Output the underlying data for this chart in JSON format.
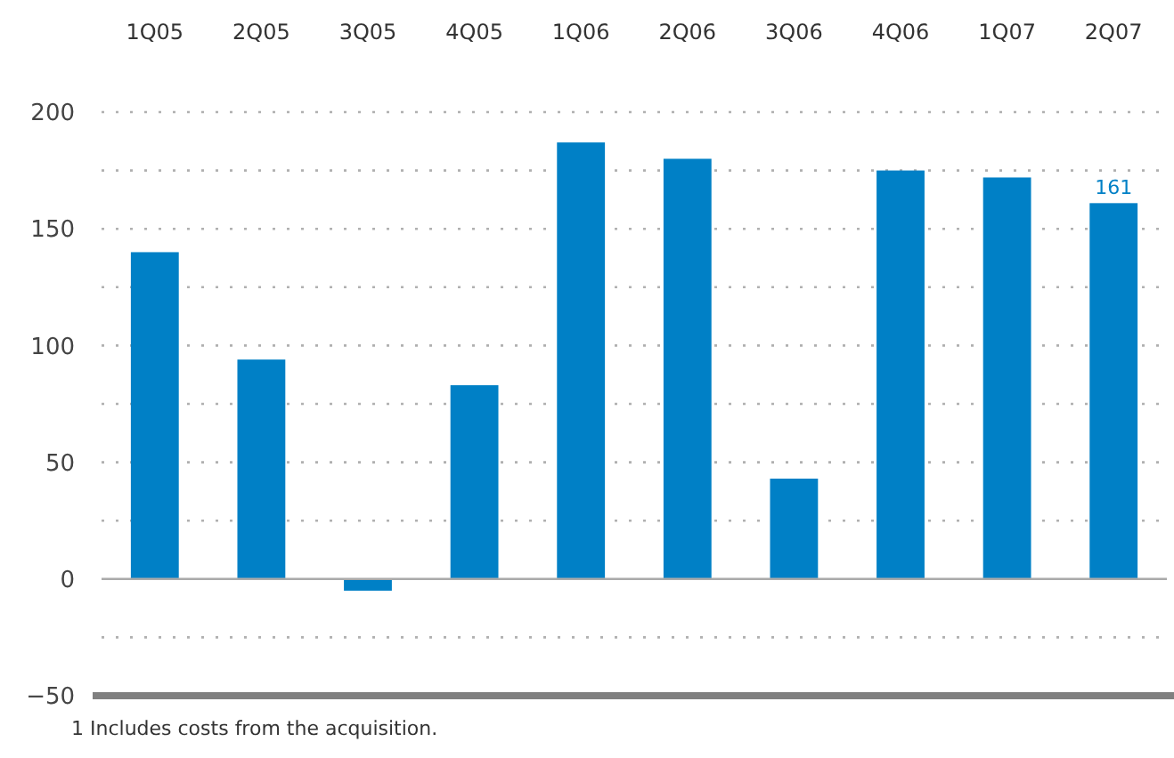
{
  "chart_data": {
    "type": "bar",
    "categories": [
      "1Q05",
      "2Q05",
      "3Q05",
      "4Q05",
      "1Q06",
      "2Q06",
      "3Q06",
      "4Q06",
      "1Q07",
      "2Q07"
    ],
    "values": [
      140,
      94,
      -5,
      83,
      187,
      180,
      43,
      175,
      172,
      161
    ],
    "value_labels": [
      null,
      null,
      null,
      null,
      null,
      null,
      null,
      null,
      null,
      "161"
    ],
    "color": "#0080c6",
    "ylim": [
      -50,
      200
    ],
    "yticks": [
      -50,
      {
        "value": -25,
        "label": null
      },
      0,
      {
        "value": 25,
        "label": null
      },
      50,
      {
        "value": 75,
        "label": null
      },
      100,
      {
        "value": 125,
        "label": null
      },
      150,
      {
        "value": 175,
        "label": null
      },
      200
    ],
    "grid": "y",
    "annotations": [
      "1 Includes costs from the acquisition."
    ]
  }
}
